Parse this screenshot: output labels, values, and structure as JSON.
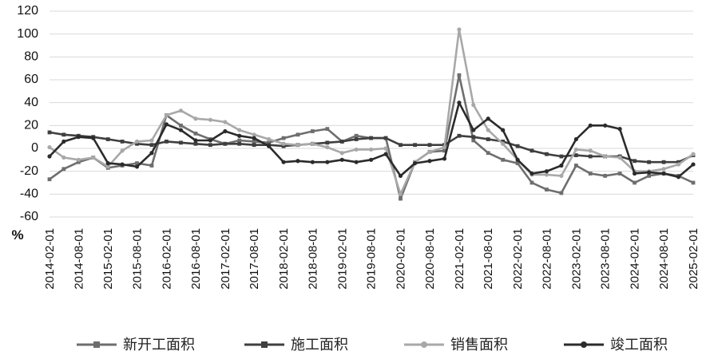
{
  "chart_data": {
    "type": "line",
    "title": "",
    "xlabel": "",
    "ylabel": "%",
    "ylim": [
      -60,
      120
    ],
    "yticks": [
      120,
      100,
      80,
      60,
      40,
      20,
      0,
      -20,
      -40,
      -60
    ],
    "grid": "horizontal",
    "legend_position": "bottom",
    "x_tick_labels": [
      "2014-02-01",
      "2014-08-01",
      "2015-02-01",
      "2015-08-01",
      "2016-02-01",
      "2016-08-01",
      "2017-02-01",
      "2017-08-01",
      "2018-02-01",
      "2018-08-01",
      "2019-02-01",
      "2019-08-01",
      "2020-02-01",
      "2020-08-01",
      "2021-02-01",
      "2021-08-01",
      "2022-02-01",
      "2022-08-01",
      "2023-02-01",
      "2023-08-01",
      "2024-02-01",
      "2024-08-01",
      "2025-02-01"
    ],
    "series": [
      {
        "name": "新开工面积",
        "color": "#6e6e6e",
        "marker": "square",
        "points": [
          [
            "2014-02-01",
            -27
          ],
          [
            "2014-05-01",
            -18
          ],
          [
            "2014-08-01",
            -12
          ],
          [
            "2014-11-01",
            -8
          ],
          [
            "2015-02-01",
            -17
          ],
          [
            "2015-05-01",
            -15
          ],
          [
            "2015-08-01",
            -13
          ],
          [
            "2015-11-01",
            -15
          ],
          [
            "2016-02-01",
            29
          ],
          [
            "2016-05-01",
            20
          ],
          [
            "2016-08-01",
            13
          ],
          [
            "2016-11-01",
            8
          ],
          [
            "2017-02-01",
            4
          ],
          [
            "2017-05-01",
            7
          ],
          [
            "2017-08-01",
            6
          ],
          [
            "2017-11-01",
            5
          ],
          [
            "2018-02-01",
            9
          ],
          [
            "2018-05-01",
            12
          ],
          [
            "2018-08-01",
            15
          ],
          [
            "2018-11-01",
            17
          ],
          [
            "2019-02-01",
            6
          ],
          [
            "2019-05-01",
            11
          ],
          [
            "2019-08-01",
            9
          ],
          [
            "2019-11-01",
            9
          ],
          [
            "2020-02-01",
            -44
          ],
          [
            "2020-05-01",
            -12
          ],
          [
            "2020-08-01",
            -3
          ],
          [
            "2020-11-01",
            -2
          ],
          [
            "2021-02-01",
            64
          ],
          [
            "2021-05-01",
            7
          ],
          [
            "2021-08-01",
            -4
          ],
          [
            "2021-11-01",
            -10
          ],
          [
            "2022-02-01",
            -13
          ],
          [
            "2022-05-01",
            -30
          ],
          [
            "2022-08-01",
            -36
          ],
          [
            "2022-11-01",
            -39
          ],
          [
            "2023-02-01",
            -15
          ],
          [
            "2023-05-01",
            -22
          ],
          [
            "2023-08-01",
            -24
          ],
          [
            "2023-11-01",
            -22
          ],
          [
            "2024-02-01",
            -30
          ],
          [
            "2024-05-01",
            -24
          ],
          [
            "2024-08-01",
            -22
          ],
          [
            "2024-11-01",
            -24
          ],
          [
            "2025-02-01",
            -30
          ]
        ]
      },
      {
        "name": "施工面积",
        "color": "#3f3f3f",
        "marker": "square",
        "points": [
          [
            "2014-02-01",
            14
          ],
          [
            "2014-05-01",
            12
          ],
          [
            "2014-08-01",
            11
          ],
          [
            "2014-11-01",
            10
          ],
          [
            "2015-02-01",
            8
          ],
          [
            "2015-05-01",
            6
          ],
          [
            "2015-08-01",
            4
          ],
          [
            "2015-11-01",
            3
          ],
          [
            "2016-02-01",
            6
          ],
          [
            "2016-05-01",
            5
          ],
          [
            "2016-08-01",
            4
          ],
          [
            "2016-11-01",
            3
          ],
          [
            "2017-02-01",
            4
          ],
          [
            "2017-05-01",
            4
          ],
          [
            "2017-08-01",
            3
          ],
          [
            "2017-11-01",
            3
          ],
          [
            "2018-02-01",
            2
          ],
          [
            "2018-05-01",
            3
          ],
          [
            "2018-08-01",
            4
          ],
          [
            "2018-11-01",
            5
          ],
          [
            "2019-02-01",
            6
          ],
          [
            "2019-05-01",
            8
          ],
          [
            "2019-08-01",
            9
          ],
          [
            "2019-11-01",
            9
          ],
          [
            "2020-02-01",
            3
          ],
          [
            "2020-05-01",
            3
          ],
          [
            "2020-08-01",
            3
          ],
          [
            "2020-11-01",
            3
          ],
          [
            "2021-02-01",
            11
          ],
          [
            "2021-05-01",
            10
          ],
          [
            "2021-08-01",
            8
          ],
          [
            "2021-11-01",
            6
          ],
          [
            "2022-02-01",
            2
          ],
          [
            "2022-05-01",
            -2
          ],
          [
            "2022-08-01",
            -5
          ],
          [
            "2022-11-01",
            -7
          ],
          [
            "2023-02-01",
            -6
          ],
          [
            "2023-05-01",
            -7
          ],
          [
            "2023-08-01",
            -7
          ],
          [
            "2023-11-01",
            -7
          ],
          [
            "2024-02-01",
            -11
          ],
          [
            "2024-05-01",
            -12
          ],
          [
            "2024-08-01",
            -12
          ],
          [
            "2024-11-01",
            -12
          ],
          [
            "2025-02-01",
            -6
          ]
        ]
      },
      {
        "name": "销售面积",
        "color": "#a8a8a8",
        "marker": "circle",
        "points": [
          [
            "2014-02-01",
            1
          ],
          [
            "2014-05-01",
            -8
          ],
          [
            "2014-08-01",
            -10
          ],
          [
            "2014-11-01",
            -8
          ],
          [
            "2015-02-01",
            -16
          ],
          [
            "2015-05-01",
            -2
          ],
          [
            "2015-08-01",
            6
          ],
          [
            "2015-11-01",
            7
          ],
          [
            "2016-02-01",
            29
          ],
          [
            "2016-05-01",
            33
          ],
          [
            "2016-08-01",
            26
          ],
          [
            "2016-11-01",
            25
          ],
          [
            "2017-02-01",
            23
          ],
          [
            "2017-05-01",
            16
          ],
          [
            "2017-08-01",
            12
          ],
          [
            "2017-11-01",
            8
          ],
          [
            "2018-02-01",
            4
          ],
          [
            "2018-05-01",
            3
          ],
          [
            "2018-08-01",
            4
          ],
          [
            "2018-11-01",
            1
          ],
          [
            "2019-02-01",
            -4
          ],
          [
            "2019-05-01",
            -1
          ],
          [
            "2019-08-01",
            -1
          ],
          [
            "2019-11-01",
            0
          ],
          [
            "2020-02-01",
            -40
          ],
          [
            "2020-05-01",
            -12
          ],
          [
            "2020-08-01",
            -3
          ],
          [
            "2020-11-01",
            1
          ],
          [
            "2021-02-01",
            104
          ],
          [
            "2021-05-01",
            38
          ],
          [
            "2021-08-01",
            16
          ],
          [
            "2021-11-01",
            4
          ],
          [
            "2022-02-01",
            -10
          ],
          [
            "2022-05-01",
            -23
          ],
          [
            "2022-08-01",
            -23
          ],
          [
            "2022-11-01",
            -24
          ],
          [
            "2023-02-01",
            -1
          ],
          [
            "2023-05-01",
            -2
          ],
          [
            "2023-08-01",
            -7
          ],
          [
            "2023-11-01",
            -8
          ],
          [
            "2024-02-01",
            -20
          ],
          [
            "2024-05-01",
            -20
          ],
          [
            "2024-08-01",
            -18
          ],
          [
            "2024-11-01",
            -14
          ],
          [
            "2025-02-01",
            -5
          ]
        ]
      },
      {
        "name": "竣工面积",
        "color": "#2b2b2b",
        "marker": "circle",
        "points": [
          [
            "2014-02-01",
            -7
          ],
          [
            "2014-05-01",
            6
          ],
          [
            "2014-08-01",
            10
          ],
          [
            "2014-11-01",
            9
          ],
          [
            "2015-02-01",
            -13
          ],
          [
            "2015-05-01",
            -14
          ],
          [
            "2015-08-01",
            -16
          ],
          [
            "2015-11-01",
            -4
          ],
          [
            "2016-02-01",
            21
          ],
          [
            "2016-05-01",
            16
          ],
          [
            "2016-08-01",
            7
          ],
          [
            "2016-11-01",
            7
          ],
          [
            "2017-02-01",
            15
          ],
          [
            "2017-05-01",
            11
          ],
          [
            "2017-08-01",
            9
          ],
          [
            "2017-11-01",
            2
          ],
          [
            "2018-02-01",
            -12
          ],
          [
            "2018-05-01",
            -11
          ],
          [
            "2018-08-01",
            -12
          ],
          [
            "2018-11-01",
            -12
          ],
          [
            "2019-02-01",
            -10
          ],
          [
            "2019-05-01",
            -12
          ],
          [
            "2019-08-01",
            -10
          ],
          [
            "2019-11-01",
            -5
          ],
          [
            "2020-02-01",
            -24
          ],
          [
            "2020-05-01",
            -13
          ],
          [
            "2020-08-01",
            -11
          ],
          [
            "2020-11-01",
            -9
          ],
          [
            "2021-02-01",
            40
          ],
          [
            "2021-05-01",
            16
          ],
          [
            "2021-08-01",
            26
          ],
          [
            "2021-11-01",
            16
          ],
          [
            "2022-02-01",
            -10
          ],
          [
            "2022-05-01",
            -22
          ],
          [
            "2022-08-01",
            -20
          ],
          [
            "2022-11-01",
            -15
          ],
          [
            "2023-02-01",
            8
          ],
          [
            "2023-05-01",
            20
          ],
          [
            "2023-08-01",
            20
          ],
          [
            "2023-11-01",
            17
          ],
          [
            "2024-02-01",
            -22
          ],
          [
            "2024-05-01",
            -21
          ],
          [
            "2024-08-01",
            -22
          ],
          [
            "2024-11-01",
            -25
          ],
          [
            "2025-02-01",
            -14
          ]
        ]
      }
    ]
  }
}
